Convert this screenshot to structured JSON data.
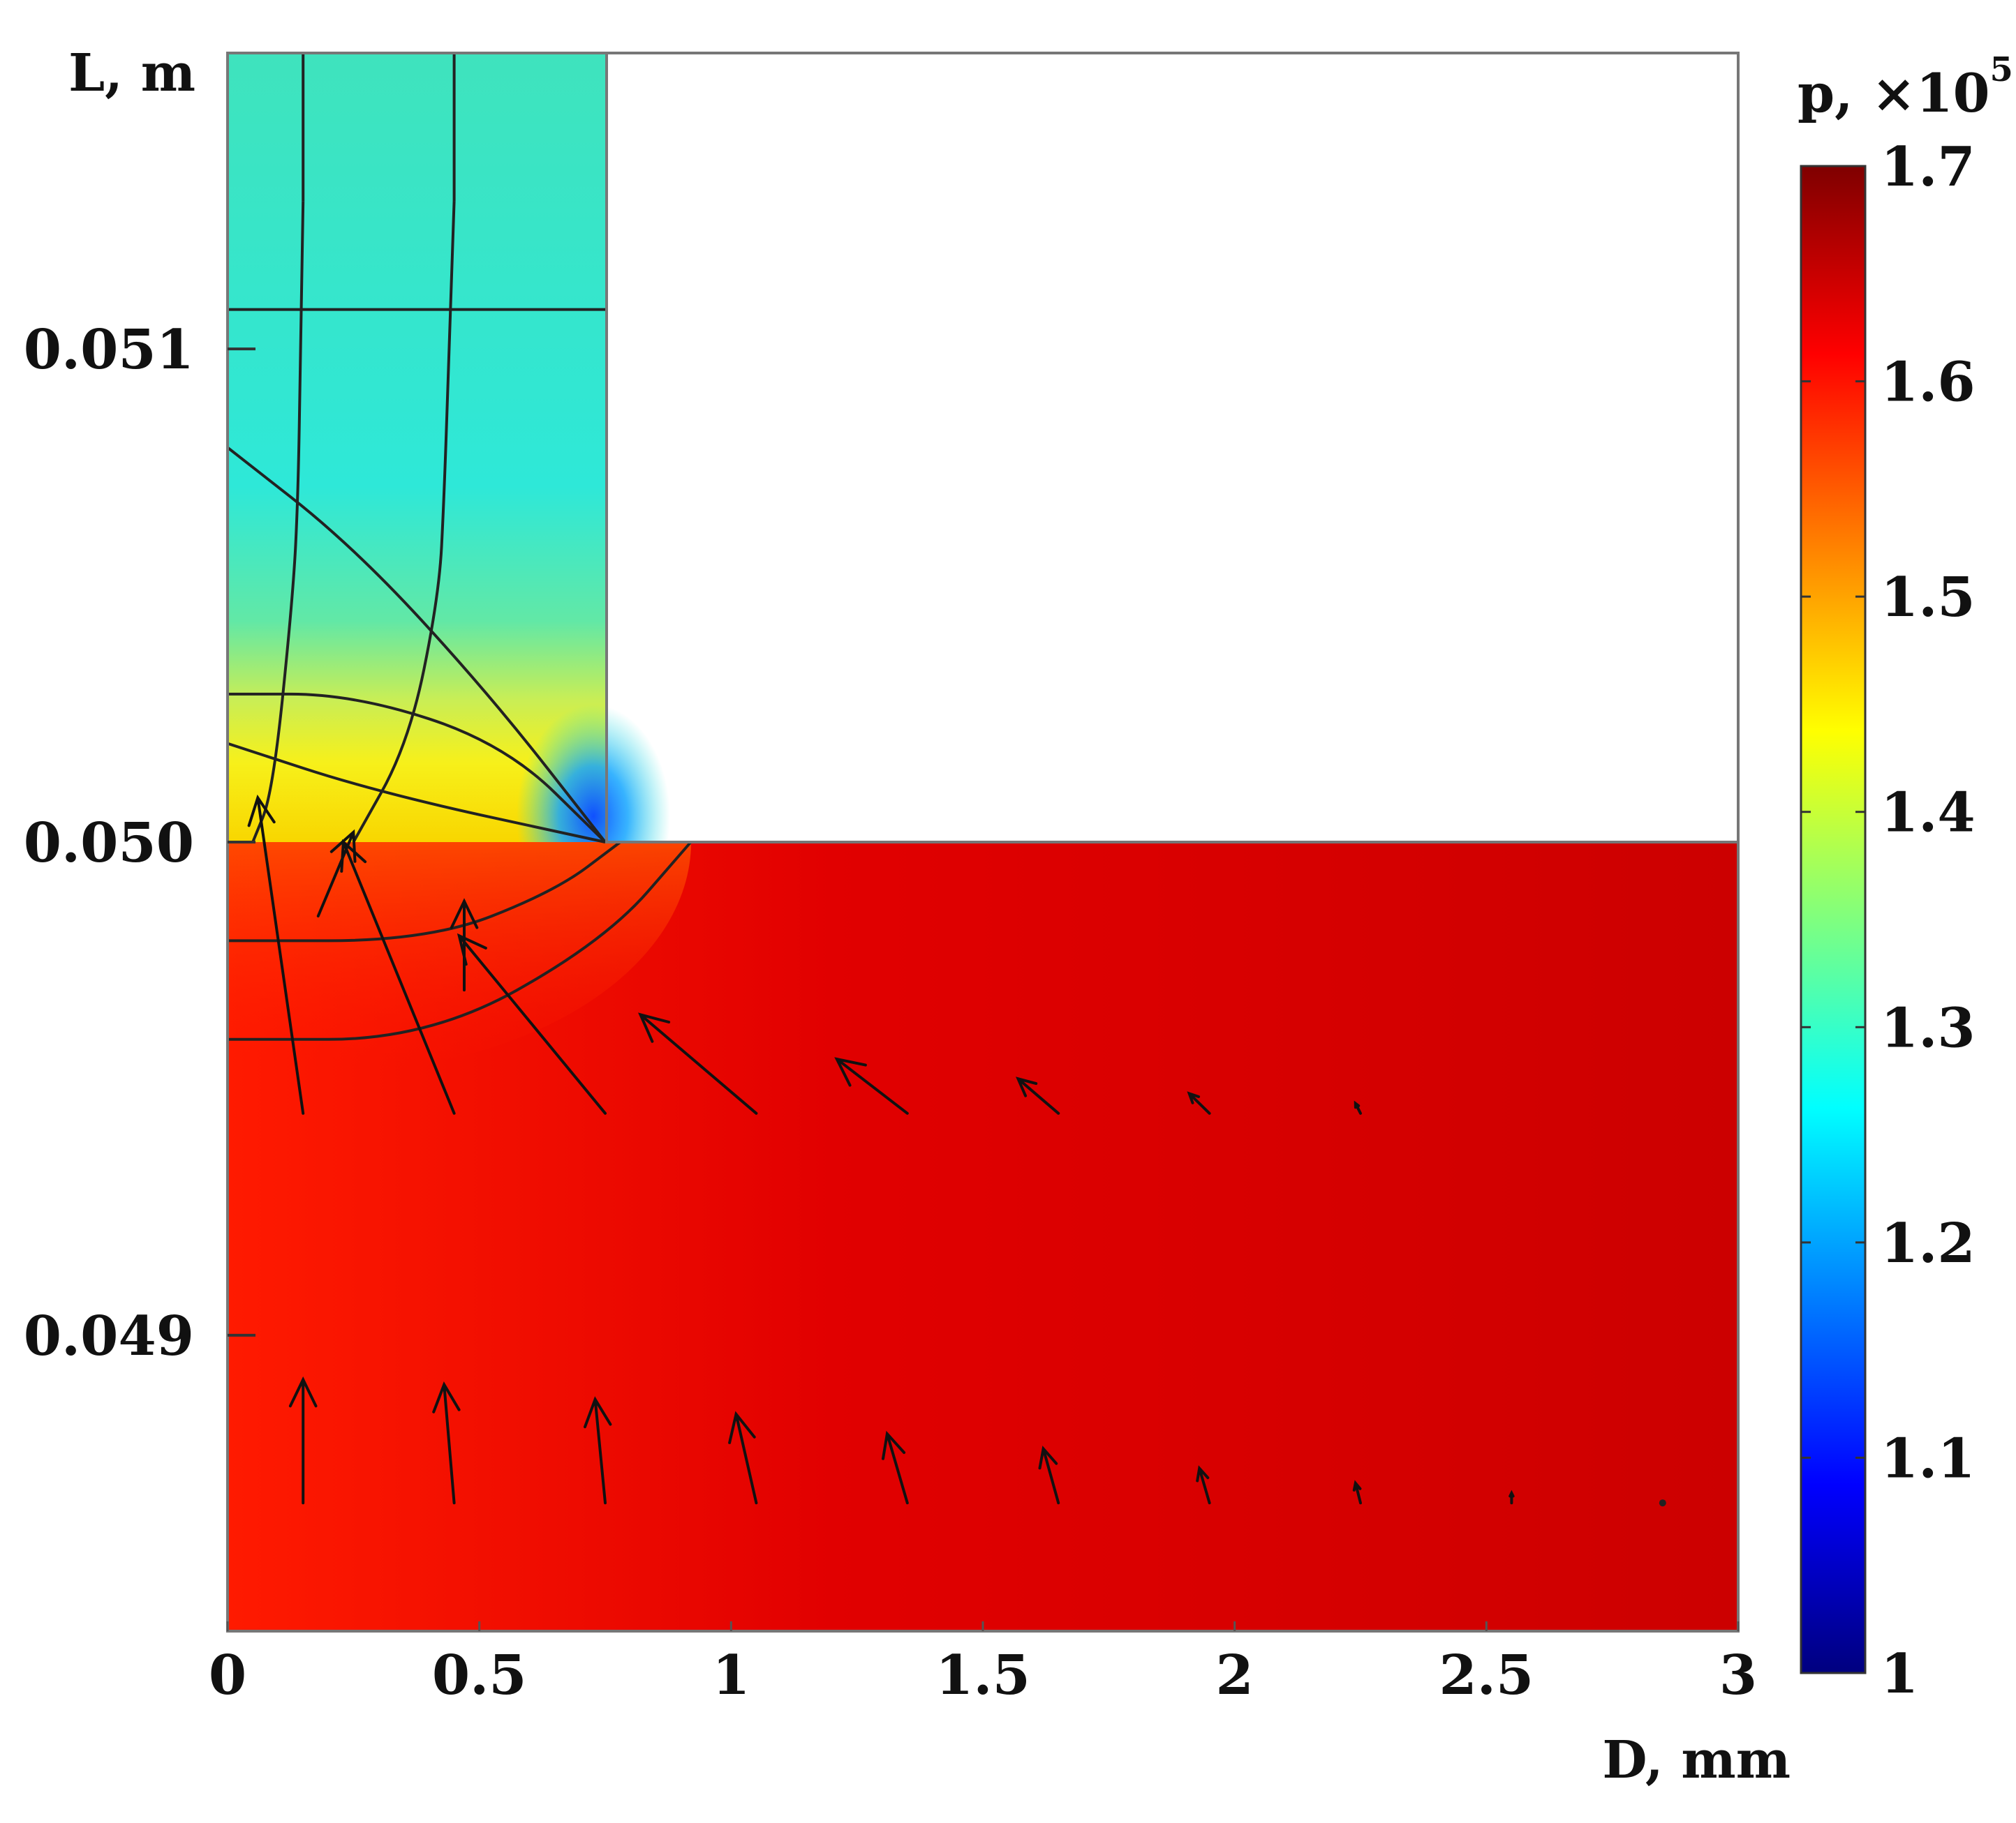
{
  "chart_data": {
    "type": "heatmap",
    "xlabel": "D, mm",
    "ylabel": "L, m",
    "xlim": [
      0,
      3
    ],
    "ylim": [
      0.0484,
      0.0516
    ],
    "x_ticks": [
      {
        "value": 0,
        "label": "0"
      },
      {
        "value": 0.5,
        "label": "0.5"
      },
      {
        "value": 1,
        "label": "1"
      },
      {
        "value": 1.5,
        "label": "1.5"
      },
      {
        "value": 2,
        "label": "2"
      },
      {
        "value": 2.5,
        "label": "2.5"
      },
      {
        "value": 3,
        "label": "3"
      }
    ],
    "y_ticks": [
      {
        "value": 0.051,
        "label": "0.051"
      },
      {
        "value": 0.05,
        "label": "0.050"
      },
      {
        "value": 0.049,
        "label": "0.049"
      }
    ],
    "colorbar": {
      "label_text": "p, ×10",
      "label_exp": "5",
      "min": 1.0,
      "max": 1.7,
      "ticks": [
        {
          "value": 1.7,
          "label": "1.7"
        },
        {
          "value": 1.6,
          "label": "1.6"
        },
        {
          "value": 1.5,
          "label": "1.5"
        },
        {
          "value": 1.4,
          "label": "1.4"
        },
        {
          "value": 1.3,
          "label": "1.3"
        },
        {
          "value": 1.2,
          "label": "1.2"
        },
        {
          "value": 1.1,
          "label": "1.1"
        },
        {
          "value": 1,
          "label": "1"
        }
      ],
      "colors": [
        "#00007f",
        "#0000ff",
        "#007fff",
        "#00ffff",
        "#7fff7f",
        "#ffff00",
        "#ff7f00",
        "#ff0000",
        "#7f0000"
      ]
    },
    "regions": {
      "channel_upper": {
        "x": [
          0,
          0.75
        ],
        "y": [
          0.05,
          0.0516
        ],
        "pressure": 1.3
      },
      "domain_lower": {
        "x": [
          0,
          3
        ],
        "y": [
          0.0484,
          0.05
        ],
        "pressure": 1.65
      },
      "blank_upper_right": {
        "x": [
          0.75,
          3
        ],
        "y": [
          0.05,
          0.0516
        ]
      }
    },
    "velocity_arrows": [
      {
        "x": 0.15,
        "y": 0.04866,
        "dx": 0,
        "dy": 0.00025
      },
      {
        "x": 0.45,
        "y": 0.04866,
        "dx": -0.02,
        "dy": 0.00024
      },
      {
        "x": 0.75,
        "y": 0.04866,
        "dx": -0.02,
        "dy": 0.00021
      },
      {
        "x": 1.05,
        "y": 0.04866,
        "dx": -0.04,
        "dy": 0.00018
      },
      {
        "x": 1.35,
        "y": 0.04866,
        "dx": -0.04,
        "dy": 0.00014
      },
      {
        "x": 1.65,
        "y": 0.04866,
        "dx": -0.03,
        "dy": 0.00011
      },
      {
        "x": 1.95,
        "y": 0.04866,
        "dx": -0.02,
        "dy": 7e-05
      },
      {
        "x": 2.25,
        "y": 0.04866,
        "dx": -0.01,
        "dy": 4e-05
      },
      {
        "x": 2.55,
        "y": 0.04866,
        "dx": 0,
        "dy": 2e-05
      },
      {
        "x": 2.85,
        "y": 0.04866,
        "dx": 0,
        "dy": 1e-05
      },
      {
        "x": 1.05,
        "y": 0.04945,
        "dx": -0.23,
        "dy": 0.0002
      },
      {
        "x": 1.35,
        "y": 0.04945,
        "dx": -0.14,
        "dy": 0.00011
      },
      {
        "x": 1.65,
        "y": 0.04945,
        "dx": -0.08,
        "dy": 7e-05
      },
      {
        "x": 1.95,
        "y": 0.04945,
        "dx": -0.04,
        "dy": 4e-05
      },
      {
        "x": 2.25,
        "y": 0.04945,
        "dx": -0.01,
        "dy": 2e-05
      },
      {
        "x": 0.75,
        "y": 0.04945,
        "dx": -0.29,
        "dy": 0.00036
      },
      {
        "x": 0.45,
        "y": 0.04945,
        "dx": -0.22,
        "dy": 0.00055
      },
      {
        "x": 0.15,
        "y": 0.04945,
        "dx": -0.09,
        "dy": 0.00064
      },
      {
        "x": 0.47,
        "y": 0.0497,
        "dx": 0.0,
        "dy": 0.00018
      },
      {
        "x": 0.18,
        "y": 0.04985,
        "dx": 0.07,
        "dy": 0.00017
      }
    ],
    "streamlines": [
      [
        [
          0.15,
          0.0513
        ],
        [
          0.145,
          0.051
        ],
        [
          0.14,
          0.0507
        ],
        [
          0.13,
          0.0505
        ],
        [
          0.09,
          0.0501
        ],
        [
          0.05,
          0.05
        ]
      ],
      [
        [
          0.45,
          0.0513
        ],
        [
          0.44,
          0.051
        ],
        [
          0.43,
          0.0507
        ],
        [
          0.42,
          0.0505
        ],
        [
          0.36,
          0.0502
        ],
        [
          0.25,
          0.05
        ]
      ],
      [
        [
          0.15,
          0.0516
        ],
        [
          0.15,
          0.0513
        ]
      ],
      [
        [
          0.45,
          0.0516
        ],
        [
          0.45,
          0.0513
        ]
      ]
    ],
    "contours": [
      [
        [
          0,
          0.0508
        ],
        [
          0.25,
          0.0506
        ],
        [
          0.52,
          0.0503
        ],
        [
          0.75,
          0.05
        ]
      ],
      [
        [
          0,
          0.0503
        ],
        [
          0.25,
          0.0503
        ],
        [
          0.55,
          0.0502
        ],
        [
          0.75,
          0.05
        ]
      ],
      [
        [
          0,
          0.0502
        ],
        [
          0.3,
          0.0501
        ],
        [
          0.75,
          0.05
        ]
      ],
      [
        [
          0,
          0.0496
        ],
        [
          0.4,
          0.0496
        ],
        [
          0.75,
          0.0498
        ],
        [
          0.92,
          0.05
        ]
      ],
      [
        [
          0,
          0.0498
        ],
        [
          0.4,
          0.0498
        ],
        [
          0.65,
          0.0499
        ],
        [
          0.78,
          0.05
        ]
      ]
    ]
  }
}
